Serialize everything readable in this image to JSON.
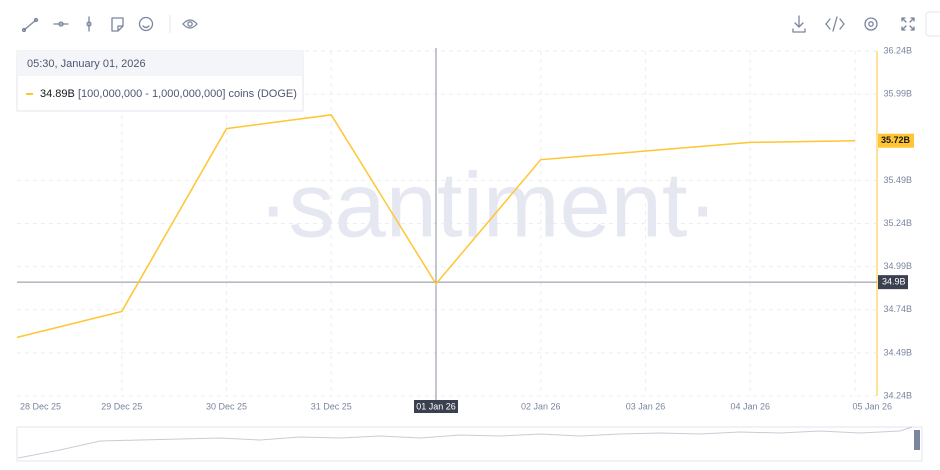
{
  "chart_data": {
    "type": "line",
    "watermark": "·santiment·",
    "categories": [
      "28 Dec 25",
      "29 Dec 25",
      "30 Dec 25",
      "31 Dec 25",
      "01 Jan 26",
      "02 Jan 26",
      "03 Jan 26",
      "04 Jan 26",
      "05 Jan 26"
    ],
    "series": [
      {
        "name": "[100,000,000 - 1,000,000,000] coins (DOGE)",
        "color": "#ffc532",
        "values": [
          34.58,
          34.73,
          35.79,
          35.87,
          34.89,
          35.61,
          35.66,
          35.71,
          35.72
        ]
      }
    ],
    "ylim": [
      34.24,
      36.24
    ],
    "yticks": [
      {
        "value": 34.24,
        "label": "34.24B"
      },
      {
        "value": 34.49,
        "label": "34.49B"
      },
      {
        "value": 34.74,
        "label": "34.74B"
      },
      {
        "value": 34.99,
        "label": "34.99B"
      },
      {
        "value": 35.24,
        "label": "35.24B"
      },
      {
        "value": 35.49,
        "label": "35.49B"
      },
      {
        "value": 35.99,
        "label": "35.99B"
      },
      {
        "value": 36.24,
        "label": "36.24B"
      }
    ],
    "grid": true,
    "last_value": {
      "value": 35.72,
      "label": "35.72B"
    },
    "crosshair": {
      "category": "01 Jan 26",
      "y": {
        "value": 34.9,
        "label": "34.9B"
      }
    },
    "tooltip": {
      "time": "05:30, January 01, 2026",
      "value": {
        "value": 34.89,
        "label": "34.89B"
      }
    }
  }
}
